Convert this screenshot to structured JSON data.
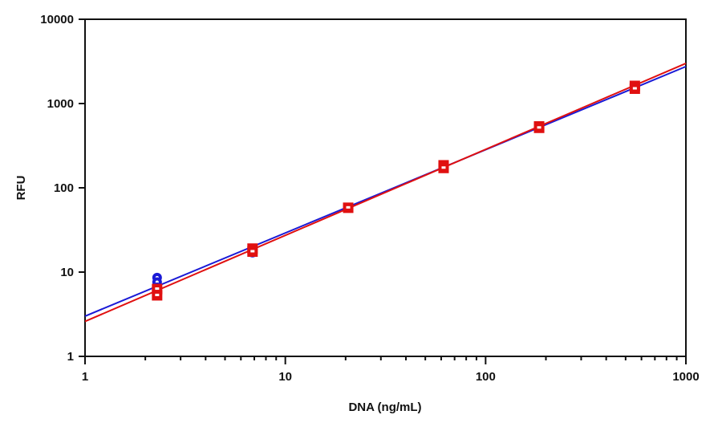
{
  "chart_data": {
    "type": "scatter",
    "title": "",
    "xlabel": "DNA (ng/mL)",
    "ylabel": "RFU",
    "xscale": "log",
    "yscale": "log",
    "xlim": [
      1,
      1000
    ],
    "ylim": [
      1,
      10000
    ],
    "x_ticks": [
      "1",
      "10",
      "100",
      "1000"
    ],
    "y_ticks": [
      "1",
      "10",
      "100",
      "1000",
      "10000"
    ],
    "grid": false,
    "legend": null,
    "x": [
      2.29,
      6.86,
      20.6,
      61.7,
      185,
      556
    ],
    "series": [
      {
        "name": "blue",
        "color": "#1a1ad6",
        "marker": "circle",
        "points": [
          [
            2.29,
            8.6
          ],
          [
            2.29,
            7.6
          ],
          [
            2.29,
            6.6
          ],
          [
            6.86,
            18
          ],
          [
            6.86,
            17
          ],
          [
            20.6,
            58
          ],
          [
            61.7,
            186
          ],
          [
            61.7,
            176
          ],
          [
            185,
            530
          ],
          [
            556,
            1600
          ],
          [
            556,
            1500
          ]
        ],
        "fit_line": {
          "x": [
            1,
            1000
          ],
          "y": [
            3.0,
            2750
          ]
        }
      },
      {
        "name": "red",
        "color": "#e01010",
        "marker": "square",
        "points": [
          [
            2.29,
            6.3
          ],
          [
            2.29,
            5.3
          ],
          [
            6.86,
            19
          ],
          [
            6.86,
            17.5
          ],
          [
            20.6,
            58
          ],
          [
            61.7,
            185
          ],
          [
            61.7,
            172
          ],
          [
            185,
            535
          ],
          [
            185,
            515
          ],
          [
            556,
            1620
          ],
          [
            556,
            1500
          ]
        ],
        "fit_line": {
          "x": [
            1,
            1000
          ],
          "y": [
            2.6,
            3000
          ]
        }
      }
    ]
  }
}
